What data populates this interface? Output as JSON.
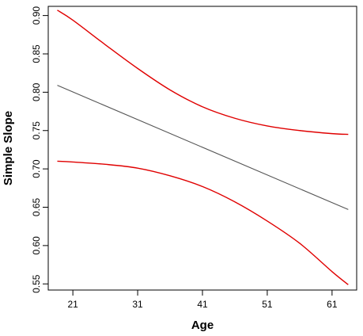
{
  "chart_data": {
    "type": "line",
    "title": "",
    "xlabel": "Age",
    "ylabel": "Simple Slope",
    "xlim": [
      17.2,
      64.8
    ],
    "ylim": [
      0.542,
      0.912
    ],
    "xticks": [
      21,
      31,
      41,
      51,
      61
    ],
    "yticks": [
      0.55,
      0.6,
      0.65,
      0.7,
      0.75,
      0.8,
      0.85,
      0.9
    ],
    "ytick_labels": [
      "0.55",
      "0.60",
      "0.65",
      "0.70",
      "0.75",
      "0.80",
      "0.85",
      "0.90"
    ],
    "grid": false,
    "legend": "none",
    "series": [
      {
        "role": "estimate",
        "color": "#555555",
        "x": [
          18.6,
          63.5
        ],
        "y": [
          0.809,
          0.647
        ]
      },
      {
        "role": "upper-bound",
        "color": "#e00000",
        "x": [
          18.6,
          21,
          26,
          31,
          36,
          41,
          46,
          51,
          56,
          61,
          63.5
        ],
        "y": [
          0.907,
          0.894,
          0.862,
          0.831,
          0.803,
          0.781,
          0.766,
          0.756,
          0.75,
          0.746,
          0.745
        ]
      },
      {
        "role": "lower-bound",
        "color": "#e00000",
        "x": [
          18.6,
          21,
          26,
          31,
          36,
          41,
          46,
          51,
          56,
          61,
          63.5
        ],
        "y": [
          0.71,
          0.709,
          0.706,
          0.701,
          0.691,
          0.677,
          0.657,
          0.632,
          0.603,
          0.566,
          0.549
        ]
      }
    ]
  }
}
